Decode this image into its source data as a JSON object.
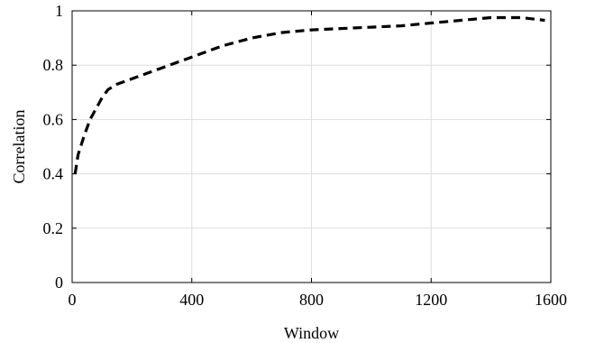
{
  "chart_data": {
    "type": "line",
    "title": "",
    "xlabel": "Window",
    "ylabel": "Correlation",
    "xlim": [
      0,
      1600
    ],
    "ylim": [
      0,
      1
    ],
    "xticks": [
      0,
      400,
      800,
      1200,
      1600
    ],
    "yticks": [
      0,
      0.2,
      0.4,
      0.6,
      0.8,
      1
    ],
    "xtick_labels": [
      "0",
      "400",
      "800",
      "1200",
      "1600"
    ],
    "ytick_labels": [
      "0",
      "0.2",
      "0.4",
      "0.6",
      "0.8",
      "1"
    ],
    "grid": true,
    "series": [
      {
        "color": "#000000",
        "style": "dashed",
        "x": [
          10,
          20,
          40,
          60,
          80,
          100,
          120,
          150,
          200,
          250,
          300,
          350,
          400,
          450,
          500,
          600,
          700,
          800,
          900,
          1000,
          1100,
          1200,
          1300,
          1400,
          1500,
          1580
        ],
        "y": [
          0.4,
          0.47,
          0.54,
          0.6,
          0.64,
          0.68,
          0.71,
          0.73,
          0.75,
          0.77,
          0.79,
          0.81,
          0.83,
          0.85,
          0.87,
          0.9,
          0.92,
          0.93,
          0.935,
          0.94,
          0.945,
          0.955,
          0.965,
          0.975,
          0.975,
          0.965
        ]
      }
    ]
  }
}
